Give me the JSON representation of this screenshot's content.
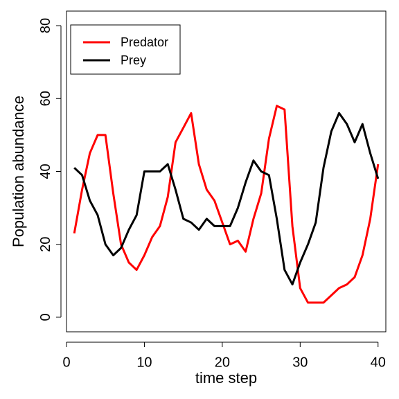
{
  "chart_data": {
    "type": "line",
    "title": "",
    "xlabel": "time step",
    "ylabel": "Population abundance",
    "xlim": [
      0,
      41
    ],
    "ylim": [
      -4,
      84
    ],
    "xticks": [
      0,
      10,
      20,
      30,
      40
    ],
    "yticks": [
      0,
      20,
      40,
      60,
      80
    ],
    "grid": false,
    "legend_position": "top-left",
    "x": [
      1,
      2,
      3,
      4,
      5,
      6,
      7,
      8,
      9,
      10,
      11,
      12,
      13,
      14,
      15,
      16,
      17,
      18,
      19,
      20,
      21,
      22,
      23,
      24,
      25,
      26,
      27,
      28,
      29,
      30,
      31,
      32,
      33,
      34,
      35,
      36,
      37,
      38,
      39,
      40
    ],
    "series": [
      {
        "name": "Predator",
        "color": "#ff0000",
        "values": [
          23,
          35,
          45,
          50,
          50,
          34,
          20,
          15,
          13,
          17,
          22,
          25,
          33,
          48,
          52,
          56,
          42,
          35,
          32,
          26,
          20,
          21,
          18,
          27,
          34,
          49,
          58,
          57,
          25,
          8,
          4,
          4,
          4,
          6,
          8,
          9,
          11,
          17,
          27,
          42
        ]
      },
      {
        "name": "Prey",
        "color": "#000000",
        "values": [
          41,
          39,
          32,
          28,
          20,
          17,
          19,
          24,
          28,
          40,
          40,
          40,
          42,
          35,
          27,
          26,
          24,
          27,
          25,
          25,
          25,
          30,
          37,
          43,
          40,
          39,
          27,
          13,
          9,
          15,
          20,
          26,
          41,
          51,
          56,
          53,
          48,
          53,
          45,
          38
        ]
      }
    ]
  }
}
